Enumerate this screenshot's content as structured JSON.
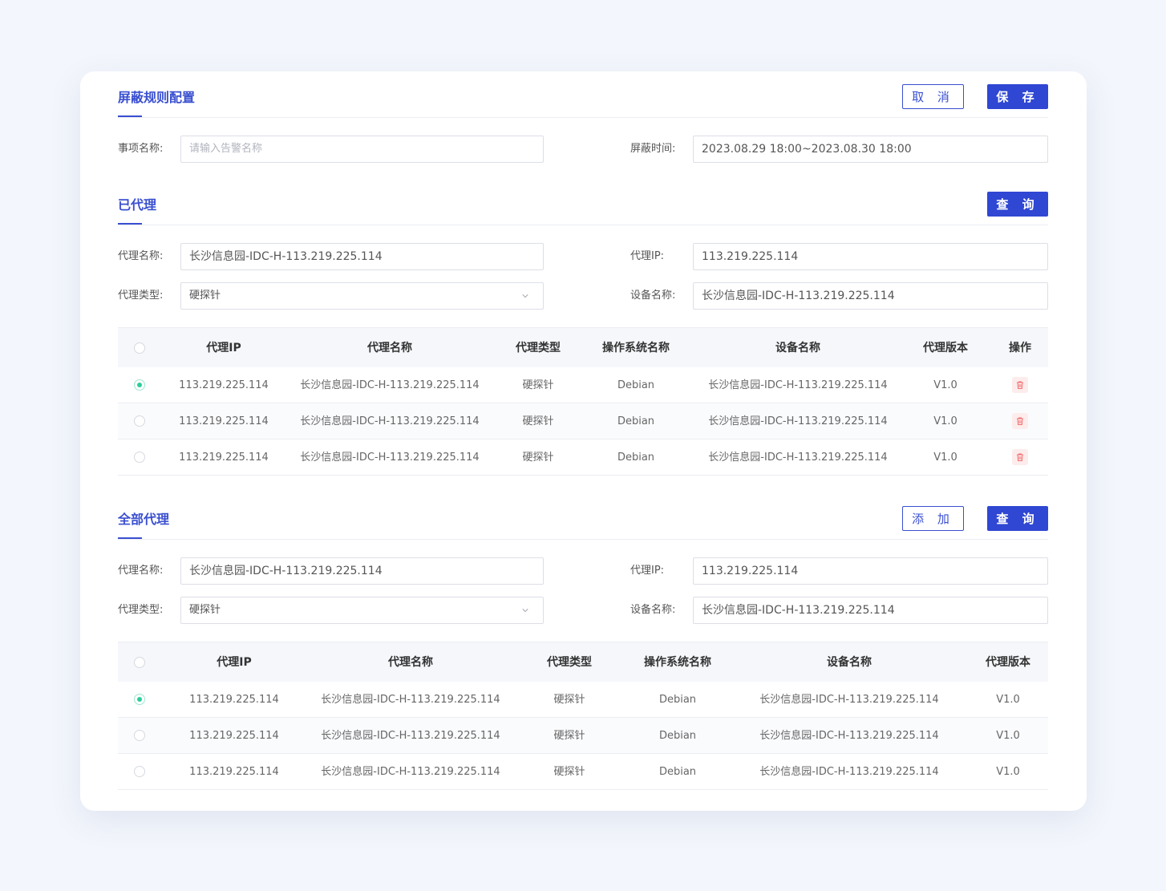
{
  "form": {
    "title": "屏蔽规则配置",
    "cancel_label": "取 消",
    "save_label": "保 存",
    "event_name_label": "事项名称:",
    "event_name_placeholder": "请输入告警名称",
    "mask_time_label": "屏蔽时间:",
    "mask_time_value": "2023.08.29 18:00~2023.08.30 18:00"
  },
  "proxied": {
    "title": "已代理",
    "query_label": "查 询",
    "filters": {
      "agent_name_label": "代理名称:",
      "agent_name_value": "长沙信息园-IDC-H-113.219.225.114",
      "agent_ip_label": "代理IP:",
      "agent_ip_value": "113.219.225.114",
      "agent_type_label": "代理类型:",
      "agent_type_value": "硬探针",
      "device_name_label": "设备名称:",
      "device_name_value": "长沙信息园-IDC-H-113.219.225.114"
    },
    "columns": [
      "代理IP",
      "代理名称",
      "代理类型",
      "操作系统名称",
      "设备名称",
      "代理版本",
      "操作"
    ],
    "rows": [
      {
        "selected": true,
        "ip": "113.219.225.114",
        "name": "长沙信息园-IDC-H-113.219.225.114",
        "type": "硬探针",
        "os": "Debian",
        "device": "长沙信息园-IDC-H-113.219.225.114",
        "version": "V1.0"
      },
      {
        "selected": false,
        "ip": "113.219.225.114",
        "name": "长沙信息园-IDC-H-113.219.225.114",
        "type": "硬探针",
        "os": "Debian",
        "device": "长沙信息园-IDC-H-113.219.225.114",
        "version": "V1.0"
      },
      {
        "selected": false,
        "ip": "113.219.225.114",
        "name": "长沙信息园-IDC-H-113.219.225.114",
        "type": "硬探针",
        "os": "Debian",
        "device": "长沙信息园-IDC-H-113.219.225.114",
        "version": "V1.0"
      }
    ]
  },
  "all": {
    "title": "全部代理",
    "add_label": "添 加",
    "query_label": "查 询",
    "filters": {
      "agent_name_label": "代理名称:",
      "agent_name_value": "长沙信息园-IDC-H-113.219.225.114",
      "agent_ip_label": "代理IP:",
      "agent_ip_value": "113.219.225.114",
      "agent_type_label": "代理类型:",
      "agent_type_value": "硬探针",
      "device_name_label": "设备名称:",
      "device_name_value": "长沙信息园-IDC-H-113.219.225.114"
    },
    "columns": [
      "代理IP",
      "代理名称",
      "代理类型",
      "操作系统名称",
      "设备名称",
      "代理版本"
    ],
    "rows": [
      {
        "selected": true,
        "ip": "113.219.225.114",
        "name": "长沙信息园-IDC-H-113.219.225.114",
        "type": "硬探针",
        "os": "Debian",
        "device": "长沙信息园-IDC-H-113.219.225.114",
        "version": "V1.0"
      },
      {
        "selected": false,
        "ip": "113.219.225.114",
        "name": "长沙信息园-IDC-H-113.219.225.114",
        "type": "硬探针",
        "os": "Debian",
        "device": "长沙信息园-IDC-H-113.219.225.114",
        "version": "V1.0"
      },
      {
        "selected": false,
        "ip": "113.219.225.114",
        "name": "长沙信息园-IDC-H-113.219.225.114",
        "type": "硬探针",
        "os": "Debian",
        "device": "长沙信息园-IDC-H-113.219.225.114",
        "version": "V1.0"
      }
    ]
  },
  "colors": {
    "accent": "#2f47d2",
    "selected_radio": "#2ecc9a",
    "delete_icon": "#f07070"
  },
  "icons": {
    "select_arrow": "chevron-down-icon",
    "delete": "trash-icon"
  }
}
